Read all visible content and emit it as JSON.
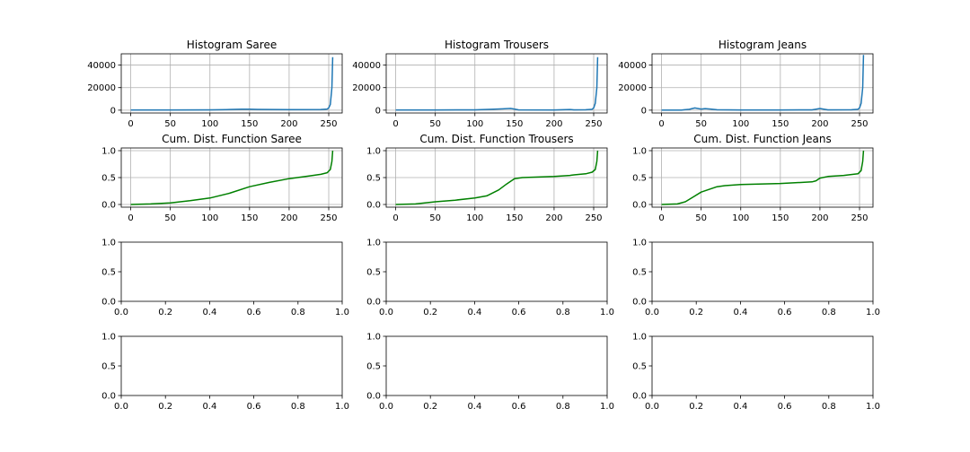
{
  "figure": {
    "background": "#ffffff"
  },
  "colors": {
    "histogram": "#1f77b4",
    "cdf": "#008000",
    "grid": "#b0b0b0",
    "axes": "#000000"
  },
  "chart_data": [
    {
      "type": "line",
      "title": "Histogram Saree",
      "color": "#1f77b4",
      "grid": true,
      "xlim": [
        -12,
        267
      ],
      "ylim": [
        -2500,
        50000
      ],
      "xticks": [
        0,
        50,
        100,
        150,
        200,
        250
      ],
      "yticks": [
        0,
        20000,
        40000
      ],
      "series": [
        {
          "x": [
            0,
            50,
            100,
            120,
            140,
            150,
            160,
            200,
            240,
            248,
            250,
            252,
            254,
            255
          ],
          "y": [
            200,
            200,
            300,
            500,
            900,
            900,
            700,
            500,
            600,
            1000,
            2000,
            5000,
            20000,
            47000
          ]
        }
      ]
    },
    {
      "type": "line",
      "title": "Histogram Trousers",
      "color": "#1f77b4",
      "grid": true,
      "xlim": [
        -12,
        267
      ],
      "ylim": [
        -2500,
        50000
      ],
      "xticks": [
        0,
        50,
        100,
        150,
        200,
        250
      ],
      "yticks": [
        0,
        20000,
        40000
      ],
      "series": [
        {
          "x": [
            0,
            50,
            100,
            120,
            135,
            145,
            150,
            155,
            200,
            220,
            225,
            240,
            248,
            250,
            252,
            254,
            255
          ],
          "y": [
            200,
            200,
            300,
            800,
            1200,
            1600,
            1000,
            300,
            200,
            600,
            300,
            400,
            800,
            2000,
            6000,
            20000,
            47000
          ]
        }
      ]
    },
    {
      "type": "line",
      "title": "Histogram Jeans",
      "color": "#1f77b4",
      "grid": true,
      "xlim": [
        -12,
        267
      ],
      "ylim": [
        -2500,
        50000
      ],
      "xticks": [
        0,
        50,
        100,
        150,
        200,
        250
      ],
      "yticks": [
        0,
        20000,
        40000
      ],
      "series": [
        {
          "x": [
            0,
            25,
            35,
            42,
            50,
            55,
            62,
            70,
            100,
            150,
            190,
            200,
            210,
            240,
            248,
            250,
            252,
            254,
            255
          ],
          "y": [
            100,
            100,
            800,
            2000,
            1000,
            1400,
            1000,
            400,
            200,
            200,
            300,
            1500,
            300,
            400,
            800,
            2000,
            6000,
            20000,
            49000
          ]
        }
      ]
    },
    {
      "type": "line",
      "title": "Cum. Dist. Function Saree",
      "color": "#008000",
      "grid": true,
      "xlim": [
        -12,
        267
      ],
      "ylim": [
        -0.05,
        1.05
      ],
      "xticks": [
        0,
        50,
        100,
        150,
        200,
        250
      ],
      "yticks": [
        0.0,
        0.5,
        1.0
      ],
      "series": [
        {
          "x": [
            0,
            25,
            50,
            75,
            100,
            125,
            150,
            175,
            200,
            225,
            240,
            248,
            252,
            254,
            255
          ],
          "y": [
            0.0,
            0.01,
            0.03,
            0.07,
            0.12,
            0.21,
            0.33,
            0.41,
            0.48,
            0.53,
            0.56,
            0.59,
            0.65,
            0.8,
            1.0
          ]
        }
      ]
    },
    {
      "type": "line",
      "title": "Cum. Dist. Function Trousers",
      "color": "#008000",
      "grid": true,
      "xlim": [
        -12,
        267
      ],
      "ylim": [
        -0.05,
        1.05
      ],
      "xticks": [
        0,
        50,
        100,
        150,
        200,
        250
      ],
      "yticks": [
        0.0,
        0.5,
        1.0
      ],
      "series": [
        {
          "x": [
            0,
            25,
            50,
            75,
            100,
            115,
            130,
            140,
            150,
            160,
            200,
            220,
            225,
            240,
            248,
            252,
            254,
            255
          ],
          "y": [
            0.0,
            0.01,
            0.05,
            0.08,
            0.12,
            0.16,
            0.27,
            0.38,
            0.48,
            0.5,
            0.52,
            0.54,
            0.55,
            0.57,
            0.6,
            0.65,
            0.8,
            1.0
          ]
        }
      ]
    },
    {
      "type": "line",
      "title": "Cum. Dist. Function Jeans",
      "color": "#008000",
      "grid": true,
      "xlim": [
        -12,
        267
      ],
      "ylim": [
        -0.05,
        1.05
      ],
      "xticks": [
        0,
        50,
        100,
        150,
        200,
        250
      ],
      "yticks": [
        0.0,
        0.5,
        1.0
      ],
      "series": [
        {
          "x": [
            0,
            20,
            30,
            40,
            50,
            60,
            70,
            80,
            100,
            150,
            190,
            195,
            200,
            210,
            230,
            248,
            252,
            254,
            255
          ],
          "y": [
            0.0,
            0.01,
            0.05,
            0.14,
            0.23,
            0.28,
            0.33,
            0.35,
            0.37,
            0.39,
            0.42,
            0.44,
            0.49,
            0.52,
            0.54,
            0.57,
            0.63,
            0.8,
            1.0
          ]
        }
      ]
    },
    {
      "type": "line",
      "title": "",
      "grid": false,
      "xlim": [
        0,
        1
      ],
      "ylim": [
        0,
        1
      ],
      "xticks": [
        0.0,
        0.2,
        0.4,
        0.6,
        0.8,
        1.0
      ],
      "yticks": [
        0.0,
        0.5,
        1.0
      ],
      "series": []
    },
    {
      "type": "line",
      "title": "",
      "grid": false,
      "xlim": [
        0,
        1
      ],
      "ylim": [
        0,
        1
      ],
      "xticks": [
        0.0,
        0.2,
        0.4,
        0.6,
        0.8,
        1.0
      ],
      "yticks": [
        0.0,
        0.5,
        1.0
      ],
      "series": []
    },
    {
      "type": "line",
      "title": "",
      "grid": false,
      "xlim": [
        0,
        1
      ],
      "ylim": [
        0,
        1
      ],
      "xticks": [
        0.0,
        0.2,
        0.4,
        0.6,
        0.8,
        1.0
      ],
      "yticks": [
        0.0,
        0.5,
        1.0
      ],
      "series": []
    },
    {
      "type": "line",
      "title": "",
      "grid": false,
      "xlim": [
        0,
        1
      ],
      "ylim": [
        0,
        1
      ],
      "xticks": [
        0.0,
        0.2,
        0.4,
        0.6,
        0.8,
        1.0
      ],
      "yticks": [
        0.0,
        0.5,
        1.0
      ],
      "series": []
    },
    {
      "type": "line",
      "title": "",
      "grid": false,
      "xlim": [
        0,
        1
      ],
      "ylim": [
        0,
        1
      ],
      "xticks": [
        0.0,
        0.2,
        0.4,
        0.6,
        0.8,
        1.0
      ],
      "yticks": [
        0.0,
        0.5,
        1.0
      ],
      "series": []
    },
    {
      "type": "line",
      "title": "",
      "grid": false,
      "xlim": [
        0,
        1
      ],
      "ylim": [
        0,
        1
      ],
      "xticks": [
        0.0,
        0.2,
        0.4,
        0.6,
        0.8,
        1.0
      ],
      "yticks": [
        0.0,
        0.5,
        1.0
      ],
      "series": []
    }
  ]
}
